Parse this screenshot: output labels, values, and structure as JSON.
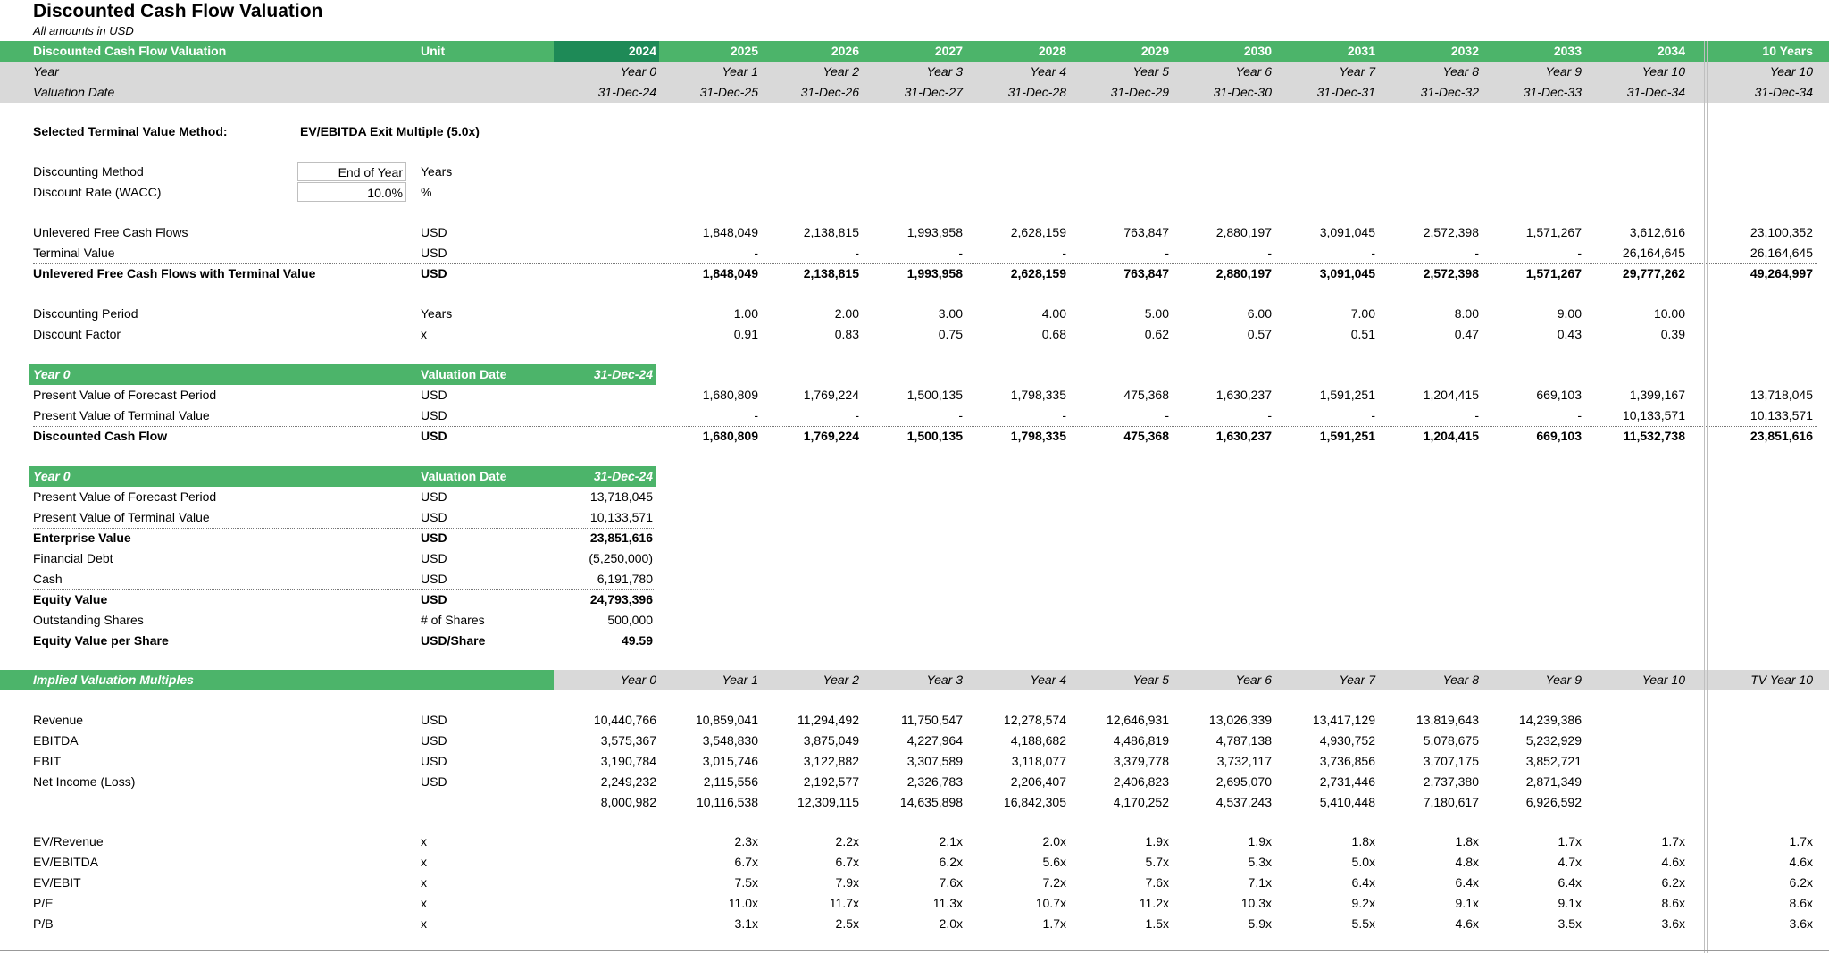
{
  "title": "Discounted Cash Flow Valuation",
  "subtitle": "All amounts in USD",
  "colors": {
    "green": "#4cb46a",
    "dark_green": "#1e8a57",
    "gray": "#d9d9d9"
  },
  "header": {
    "label": "Discounted Cash Flow Valuation",
    "unit": "Unit",
    "years": [
      "2024",
      "2025",
      "2026",
      "2027",
      "2028",
      "2029",
      "2030",
      "2031",
      "2032",
      "2033",
      "2034"
    ],
    "total": "10 Years"
  },
  "year_row": {
    "label": "Year",
    "values": [
      "Year 0",
      "Year 1",
      "Year 2",
      "Year 3",
      "Year 4",
      "Year 5",
      "Year 6",
      "Year 7",
      "Year 8",
      "Year 9",
      "Year 10"
    ],
    "total": "Year 10"
  },
  "date_row": {
    "label": "Valuation Date",
    "values": [
      "31-Dec-24",
      "31-Dec-25",
      "31-Dec-26",
      "31-Dec-27",
      "31-Dec-28",
      "31-Dec-29",
      "31-Dec-30",
      "31-Dec-31",
      "31-Dec-32",
      "31-Dec-33",
      "31-Dec-34"
    ],
    "total": "31-Dec-34"
  },
  "method": {
    "label": "Selected Terminal Value Method:",
    "value": "EV/EBITDA Exit Multiple (5.0x)"
  },
  "discounting": {
    "method_label": "Discounting Method",
    "method_value": "End of Year",
    "method_unit": "Years",
    "rate_label": "Discount Rate (WACC)",
    "rate_value": "10.0%",
    "rate_unit": "%"
  },
  "cf": {
    "unlevered": {
      "label": "Unlevered Free Cash Flows",
      "unit": "USD",
      "values": [
        "1,848,049",
        "2,138,815",
        "1,993,958",
        "2,628,159",
        "763,847",
        "2,880,197",
        "3,091,045",
        "2,572,398",
        "1,571,267",
        "3,612,616"
      ],
      "total": "23,100,352"
    },
    "terminal": {
      "label": "Terminal Value",
      "unit": "USD",
      "values": [
        "-",
        "-",
        "-",
        "-",
        "-",
        "-",
        "-",
        "-",
        "-",
        "26,164,645"
      ],
      "total": "26,164,645"
    },
    "with_tv": {
      "label": "Unlevered Free Cash Flows with Terminal Value",
      "unit": "USD",
      "values": [
        "1,848,049",
        "2,138,815",
        "1,993,958",
        "2,628,159",
        "763,847",
        "2,880,197",
        "3,091,045",
        "2,572,398",
        "1,571,267",
        "29,777,262"
      ],
      "total": "49,264,997"
    }
  },
  "disc": {
    "period": {
      "label": "Discounting Period",
      "unit": "Years",
      "values": [
        "1.00",
        "2.00",
        "3.00",
        "4.00",
        "5.00",
        "6.00",
        "7.00",
        "8.00",
        "9.00",
        "10.00"
      ]
    },
    "factor": {
      "label": "Discount Factor",
      "unit": "x",
      "values": [
        "0.91",
        "0.83",
        "0.75",
        "0.68",
        "0.62",
        "0.57",
        "0.51",
        "0.47",
        "0.43",
        "0.39"
      ]
    }
  },
  "pv": {
    "header": {
      "label": "Year 0",
      "unit": "Valuation Date",
      "value": "31-Dec-24"
    },
    "forecast": {
      "label": "Present Value of Forecast Period",
      "unit": "USD",
      "values": [
        "1,680,809",
        "1,769,224",
        "1,500,135",
        "1,798,335",
        "475,368",
        "1,630,237",
        "1,591,251",
        "1,204,415",
        "669,103",
        "1,399,167"
      ],
      "total": "13,718,045"
    },
    "terminal": {
      "label": "Present Value of Terminal Value",
      "unit": "USD",
      "values": [
        "-",
        "-",
        "-",
        "-",
        "-",
        "-",
        "-",
        "-",
        "-",
        "10,133,571"
      ],
      "total": "10,133,571"
    },
    "dcf": {
      "label": "Discounted Cash Flow",
      "unit": "USD",
      "values": [
        "1,680,809",
        "1,769,224",
        "1,500,135",
        "1,798,335",
        "475,368",
        "1,630,237",
        "1,591,251",
        "1,204,415",
        "669,103",
        "11,532,738"
      ],
      "total": "23,851,616"
    }
  },
  "equity": {
    "header": {
      "label": "Year 0",
      "unit": "Valuation Date",
      "value": "31-Dec-24"
    },
    "rows": [
      {
        "label": "Present Value of Forecast Period",
        "unit": "USD",
        "value": "13,718,045",
        "bold": false
      },
      {
        "label": "Present Value of Terminal Value",
        "unit": "USD",
        "value": "10,133,571",
        "bold": false
      },
      {
        "label": "Enterprise Value",
        "unit": "USD",
        "value": "23,851,616",
        "bold": true
      },
      {
        "label": "Financial Debt",
        "unit": "USD",
        "value": "(5,250,000)",
        "bold": false
      },
      {
        "label": "Cash",
        "unit": "USD",
        "value": "6,191,780",
        "bold": false
      },
      {
        "label": "Equity Value",
        "unit": "USD",
        "value": "24,793,396",
        "bold": true
      },
      {
        "label": "Outstanding Shares",
        "unit": "# of Shares",
        "value": "500,000",
        "bold": false
      },
      {
        "label": "Equity Value per Share",
        "unit": "USD/Share",
        "value": "49.59",
        "bold": true
      }
    ]
  },
  "multiples": {
    "header": {
      "label": "Implied Valuation Multiples",
      "values": [
        "Year 0",
        "Year 1",
        "Year 2",
        "Year 3",
        "Year 4",
        "Year 5",
        "Year 6",
        "Year 7",
        "Year 8",
        "Year 9",
        "Year 10"
      ],
      "total": "TV Year 10"
    },
    "financials": [
      {
        "label": "Revenue",
        "unit": "USD",
        "values": [
          "10,440,766",
          "10,859,041",
          "11,294,492",
          "11,750,547",
          "12,278,574",
          "12,646,931",
          "13,026,339",
          "13,417,129",
          "13,819,643",
          "14,239,386"
        ]
      },
      {
        "label": "EBITDA",
        "unit": "USD",
        "values": [
          "3,575,367",
          "3,548,830",
          "3,875,049",
          "4,227,964",
          "4,188,682",
          "4,486,819",
          "4,787,138",
          "4,930,752",
          "5,078,675",
          "5,232,929"
        ]
      },
      {
        "label": "EBIT",
        "unit": "USD",
        "values": [
          "3,190,784",
          "3,015,746",
          "3,122,882",
          "3,307,589",
          "3,118,077",
          "3,379,778",
          "3,732,117",
          "3,736,856",
          "3,707,175",
          "3,852,721"
        ]
      },
      {
        "label": "Net Income (Loss)",
        "unit": "USD",
        "values": [
          "2,249,232",
          "2,115,556",
          "2,192,577",
          "2,326,783",
          "2,206,407",
          "2,406,823",
          "2,695,070",
          "2,731,446",
          "2,737,380",
          "2,871,349"
        ]
      },
      {
        "label": "",
        "unit": "",
        "values": [
          "8,000,982",
          "10,116,538",
          "12,309,115",
          "14,635,898",
          "16,842,305",
          "4,170,252",
          "4,537,243",
          "5,410,448",
          "7,180,617",
          "6,926,592"
        ]
      }
    ],
    "ratios": [
      {
        "label": "EV/Revenue",
        "unit": "x",
        "values": [
          "2.3x",
          "2.2x",
          "2.1x",
          "2.0x",
          "1.9x",
          "1.9x",
          "1.8x",
          "1.8x",
          "1.7x",
          "1.7x"
        ],
        "total": "1.7x"
      },
      {
        "label": "EV/EBITDA",
        "unit": "x",
        "values": [
          "6.7x",
          "6.7x",
          "6.2x",
          "5.6x",
          "5.7x",
          "5.3x",
          "5.0x",
          "4.8x",
          "4.7x",
          "4.6x"
        ],
        "total": "4.6x"
      },
      {
        "label": "EV/EBIT",
        "unit": "x",
        "values": [
          "7.5x",
          "7.9x",
          "7.6x",
          "7.2x",
          "7.6x",
          "7.1x",
          "6.4x",
          "6.4x",
          "6.4x",
          "6.2x"
        ],
        "total": "6.2x"
      },
      {
        "label": "P/E",
        "unit": "x",
        "values": [
          "11.0x",
          "11.7x",
          "11.3x",
          "10.7x",
          "11.2x",
          "10.3x",
          "9.2x",
          "9.1x",
          "9.1x",
          "8.6x"
        ],
        "total": "8.6x"
      },
      {
        "label": "P/B",
        "unit": "x",
        "values": [
          "3.1x",
          "2.5x",
          "2.0x",
          "1.7x",
          "1.5x",
          "5.9x",
          "5.5x",
          "4.6x",
          "3.5x",
          "3.6x"
        ],
        "total": "3.6x"
      }
    ]
  }
}
